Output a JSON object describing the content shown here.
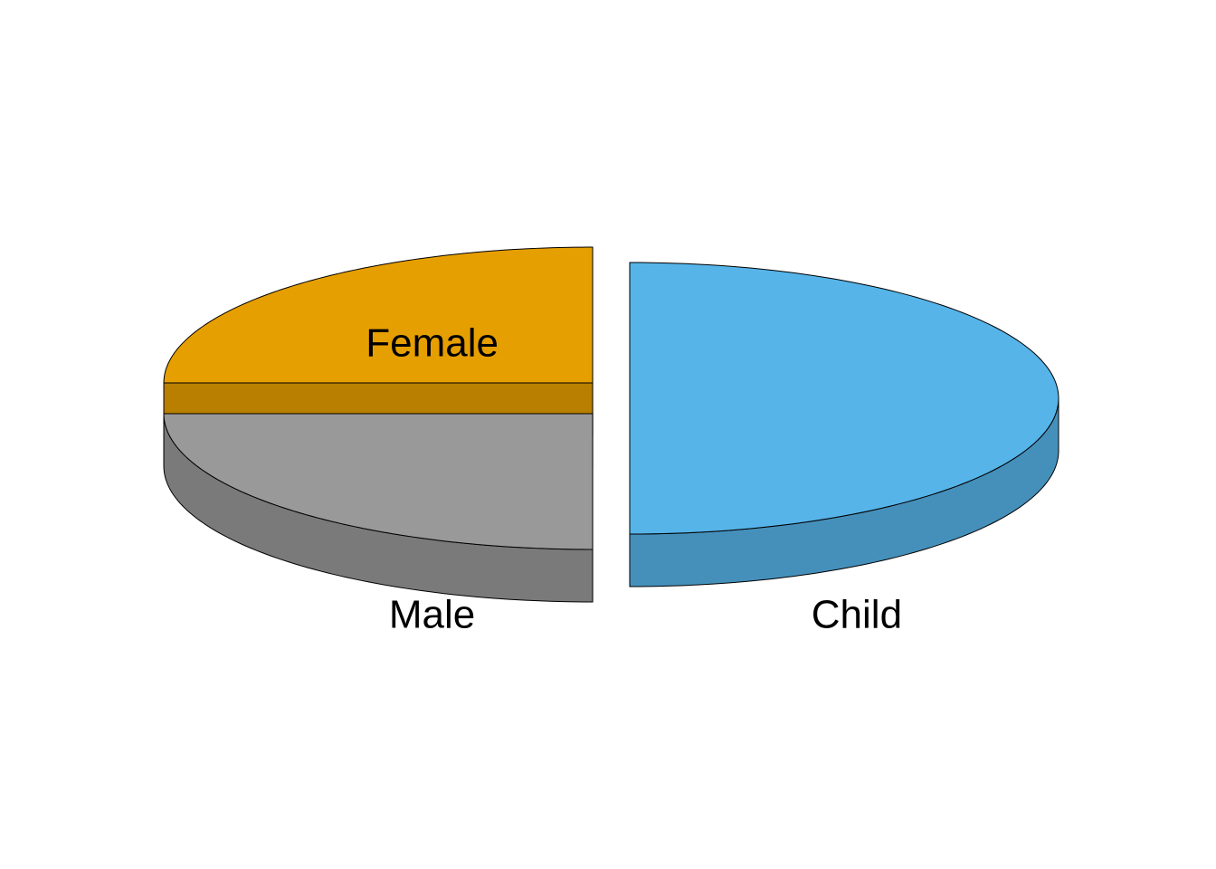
{
  "chart_data": {
    "type": "pie",
    "style": "3d-exploded",
    "slices": [
      {
        "label": "Female",
        "value": 25,
        "color": "#E69F00",
        "side_color": "#B87F00"
      },
      {
        "label": "Male",
        "value": 25,
        "color": "#999999",
        "side_color": "#7A7A7A"
      },
      {
        "label": "Child",
        "value": 50,
        "color": "#56B4E9",
        "side_color": "#4590BB"
      }
    ],
    "legend": "none",
    "grid": false
  }
}
